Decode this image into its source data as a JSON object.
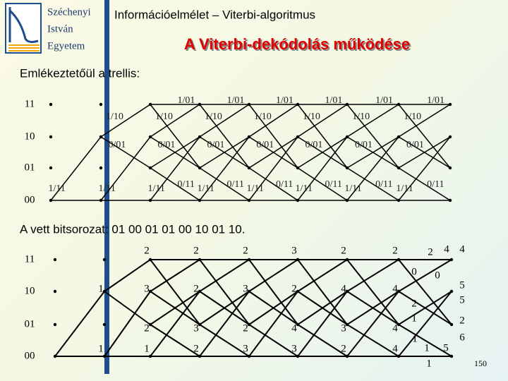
{
  "header": {
    "logo": [
      "Széchenyi",
      "István",
      "Egyetem"
    ],
    "course": "Információelmélet – Viterbi-algoritmus",
    "title": "A Viterbi-dekódolás működése"
  },
  "intro": "Emlékeztetőül a trellis:",
  "trellis1": {
    "states": [
      "11",
      "10",
      "01",
      "00"
    ],
    "labels": [
      [
        "1/11"
      ],
      [
        "1/10",
        "0/01",
        "1/11"
      ],
      [
        "1/01",
        "1/10",
        "0/01",
        "1/11",
        "0/11"
      ],
      [
        "1/01",
        "1/10",
        "0/01",
        "1/11",
        "0/11"
      ],
      [
        "1/01",
        "1/10",
        "0/01",
        "1/11",
        "0/11"
      ],
      [
        "1/01",
        "1/10",
        "0/01",
        "1/11",
        "0/11"
      ],
      [
        "1/01",
        "1/10",
        "0/01",
        "1/11",
        "0/11"
      ],
      [
        "1/01",
        "1/10",
        "0/01",
        "1/11",
        "0/11"
      ]
    ]
  },
  "received": "A vett bitsorozat: 01 00 01 01 00 10 01 10.",
  "trellis2": {
    "states": [
      "11",
      "10",
      "01",
      "00"
    ],
    "metrics": [
      [
        null,
        2,
        2,
        2,
        3,
        2,
        2
      ],
      [
        1,
        3,
        2,
        3,
        2,
        4,
        4
      ],
      [
        null,
        2,
        3,
        2,
        4,
        3,
        4
      ],
      [
        1,
        1,
        2,
        3,
        3,
        2,
        4
      ]
    ],
    "final": [
      2,
      4,
      4,
      0,
      0,
      5,
      5,
      2,
      1,
      2,
      6,
      1,
      1,
      5,
      1
    ]
  },
  "page": "150"
}
